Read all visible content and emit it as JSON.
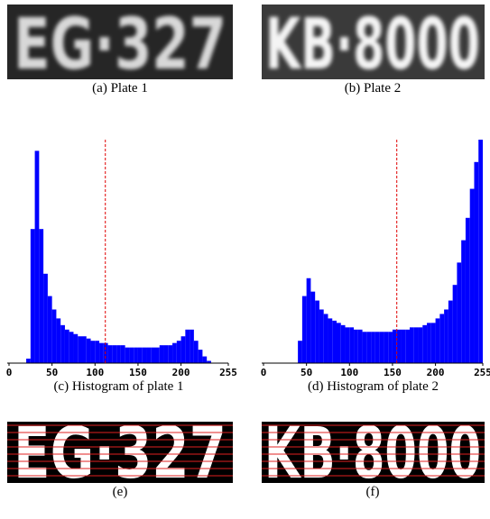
{
  "figure": {
    "plates": [
      {
        "text": "EG·327",
        "caption": "(a) Plate 1"
      },
      {
        "text": "KB·8000",
        "caption": "(b) Plate 2"
      }
    ],
    "binarized": [
      {
        "text": "EG·327",
        "caption": "(e)"
      },
      {
        "text": "KB·8000",
        "caption": "(f)"
      }
    ]
  },
  "chart_data": [
    {
      "type": "histogram",
      "caption": "(c) Histogram of plate 1",
      "color": "#0000ff",
      "threshold": 112,
      "threshold_color": "#e00000",
      "bins": [
        0,
        5,
        10,
        15,
        20,
        25,
        30,
        35,
        40,
        45,
        50,
        55,
        60,
        65,
        70,
        75,
        80,
        85,
        90,
        95,
        100,
        105,
        110,
        115,
        120,
        125,
        130,
        135,
        140,
        145,
        150,
        155,
        160,
        165,
        170,
        175,
        180,
        185,
        190,
        195,
        200,
        205,
        210,
        215,
        220,
        225,
        230,
        235,
        240,
        245,
        250,
        255
      ],
      "values": [
        0,
        0,
        0,
        0,
        2,
        60,
        95,
        60,
        40,
        30,
        24,
        20,
        17,
        15,
        14,
        13,
        12,
        12,
        11,
        10,
        10,
        9,
        9,
        8,
        8,
        8,
        8,
        7,
        7,
        7,
        7,
        7,
        7,
        7,
        7,
        8,
        8,
        8,
        9,
        10,
        12,
        15,
        15,
        10,
        6,
        3,
        1,
        0,
        0,
        0,
        0
      ],
      "xlim": [
        0,
        255
      ],
      "xticks": [
        0,
        50,
        100,
        150,
        200,
        255
      ],
      "ylim": [
        0,
        100
      ]
    },
    {
      "type": "histogram",
      "caption": "(d) Histogram of plate 2",
      "color": "#0000ff",
      "threshold": 155,
      "threshold_color": "#e00000",
      "bins": [
        0,
        5,
        10,
        15,
        20,
        25,
        30,
        35,
        40,
        45,
        50,
        55,
        60,
        65,
        70,
        75,
        80,
        85,
        90,
        95,
        100,
        105,
        110,
        115,
        120,
        125,
        130,
        135,
        140,
        145,
        150,
        155,
        160,
        165,
        170,
        175,
        180,
        185,
        190,
        195,
        200,
        205,
        210,
        215,
        220,
        225,
        230,
        235,
        240,
        245,
        250,
        255
      ],
      "values": [
        0,
        0,
        0,
        0,
        0,
        0,
        0,
        0,
        10,
        30,
        38,
        32,
        28,
        24,
        22,
        20,
        19,
        18,
        17,
        16,
        16,
        15,
        15,
        14,
        14,
        14,
        14,
        14,
        14,
        14,
        15,
        15,
        15,
        15,
        16,
        16,
        16,
        17,
        18,
        18,
        20,
        22,
        24,
        28,
        35,
        45,
        55,
        65,
        78,
        90,
        100
      ],
      "xlim": [
        0,
        255
      ],
      "xticks": [
        0,
        50,
        100,
        150,
        200,
        255
      ],
      "ylim": [
        0,
        100
      ]
    }
  ]
}
